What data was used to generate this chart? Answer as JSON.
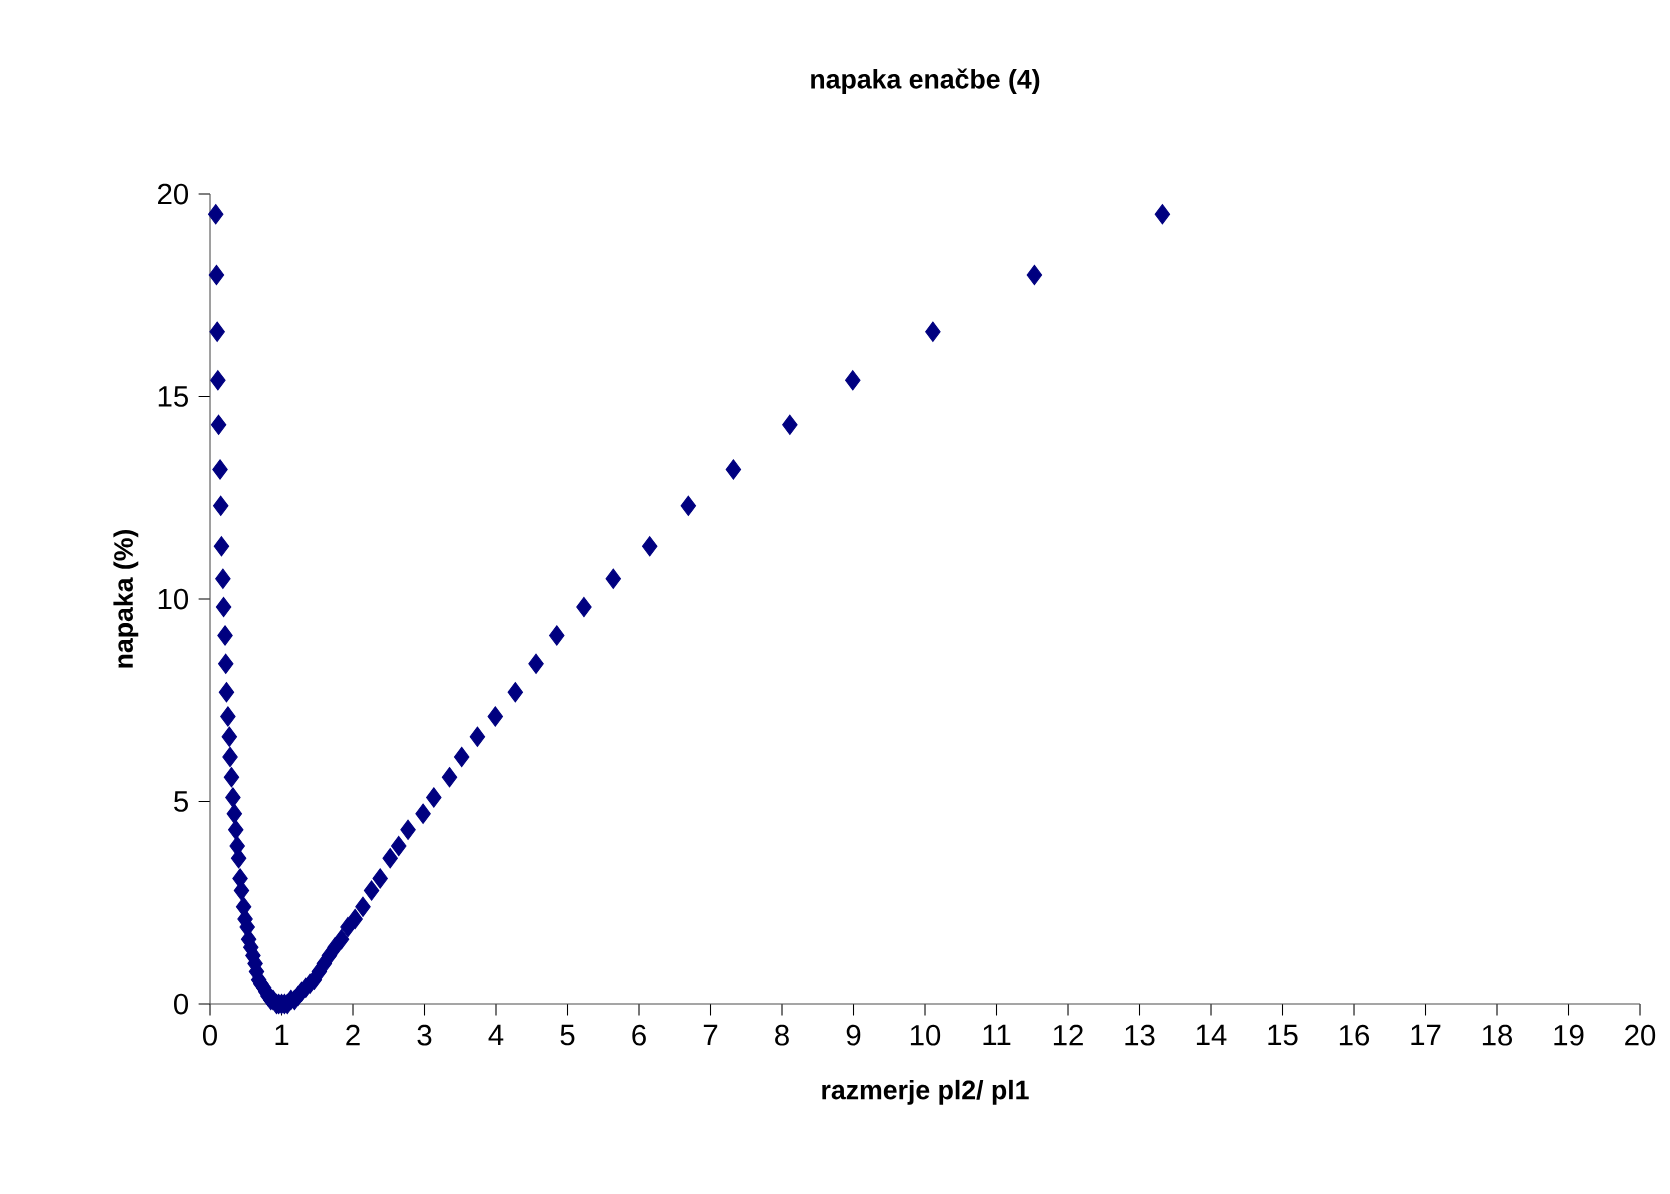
{
  "chart_data": {
    "type": "scatter",
    "title": "napaka enačbe (4)",
    "xlabel": "razmerje pl2/ pl1",
    "ylabel": "napaka (%)",
    "xlim": [
      0,
      20
    ],
    "xticks": [
      0,
      1,
      2,
      3,
      4,
      5,
      6,
      7,
      8,
      9,
      10,
      11,
      12,
      13,
      14,
      15,
      16,
      17,
      18,
      19,
      20
    ],
    "ylim": [
      0,
      20
    ],
    "yticks": [
      0,
      5,
      10,
      15,
      20
    ],
    "grid": false,
    "marker": "diamond",
    "series": [
      {
        "color": "#000080",
        "x": [
          0.08,
          0.09,
          0.1,
          0.11,
          0.12,
          0.14,
          0.15,
          0.16,
          0.18,
          0.19,
          0.21,
          0.22,
          0.23,
          0.25,
          0.27,
          0.28,
          0.3,
          0.32,
          0.34,
          0.36,
          0.38,
          0.4,
          0.42,
          0.44,
          0.47,
          0.49,
          0.52,
          0.54,
          0.57,
          0.6,
          0.63,
          0.65,
          0.68,
          0.71,
          0.75,
          0.78,
          0.81,
          0.85,
          0.88,
          0.93,
          0.96,
          1.0,
          1.04,
          1.08,
          1.13,
          1.18,
          1.23,
          1.28,
          1.34,
          1.4,
          1.46,
          1.53,
          1.6,
          1.67,
          1.75,
          1.84,
          1.93,
          2.03,
          2.14,
          2.26,
          2.38,
          2.52,
          2.64,
          2.77,
          2.98,
          3.13,
          3.35,
          3.52,
          3.74,
          3.99,
          4.27,
          4.56,
          4.85,
          5.23,
          5.64,
          6.15,
          6.69,
          7.32,
          8.11,
          8.99,
          10.11,
          11.53,
          13.32
        ],
        "values": [
          19.5,
          18.0,
          16.6,
          15.4,
          14.3,
          13.2,
          12.3,
          11.3,
          10.5,
          9.8,
          9.1,
          8.4,
          7.7,
          7.1,
          6.6,
          6.1,
          5.6,
          5.1,
          4.7,
          4.3,
          3.9,
          3.6,
          3.1,
          2.8,
          2.4,
          2.1,
          1.9,
          1.6,
          1.4,
          1.2,
          1.0,
          0.8,
          0.6,
          0.5,
          0.4,
          0.3,
          0.2,
          0.1,
          0.1,
          0.0,
          0.0,
          0.0,
          0.0,
          0.0,
          0.1,
          0.1,
          0.2,
          0.3,
          0.4,
          0.5,
          0.6,
          0.8,
          1.0,
          1.2,
          1.4,
          1.6,
          1.9,
          2.1,
          2.4,
          2.8,
          3.1,
          3.6,
          3.9,
          4.3,
          4.7,
          5.1,
          5.6,
          6.1,
          6.6,
          7.1,
          7.7,
          8.4,
          9.1,
          9.8,
          10.5,
          11.3,
          12.3,
          13.2,
          14.3,
          15.4,
          16.6,
          18.0,
          19.5
        ]
      }
    ]
  }
}
